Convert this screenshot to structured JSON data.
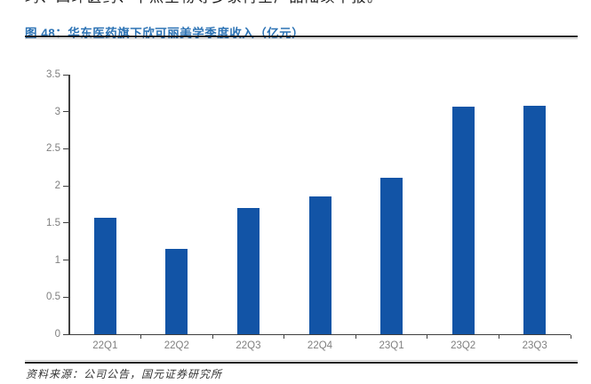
{
  "page": {
    "top_text_clipped": "玛、四环医药、华熙生物等多家再生产品陆续申报。",
    "figure_label": "图 48：",
    "figure_title": "华东医药旗下欣可丽美学季度收入（亿元）",
    "source_note": "资料来源：公司公告，国元证券研究所"
  },
  "colors": {
    "bar": "#1254A6",
    "title_blue": "#2E74B5",
    "axis_line": "#3F3F3F",
    "tick_label": "#7F7F7F",
    "rule_dark": "#1A1A1A",
    "rule_light": "#C6C6C6"
  },
  "chart_data": {
    "type": "bar",
    "title": "华东医药旗下欣可丽美学季度收入（亿元）",
    "categories": [
      "22Q1",
      "22Q2",
      "22Q3",
      "22Q4",
      "23Q1",
      "23Q2",
      "23Q3"
    ],
    "values": [
      1.57,
      1.15,
      1.7,
      1.86,
      2.11,
      3.07,
      3.08
    ],
    "xlabel": "",
    "ylabel": "",
    "ylim": [
      0,
      3.5
    ],
    "ytick_step": 0.5,
    "grid": false,
    "legend": null,
    "bar_color": "#1254A6"
  }
}
